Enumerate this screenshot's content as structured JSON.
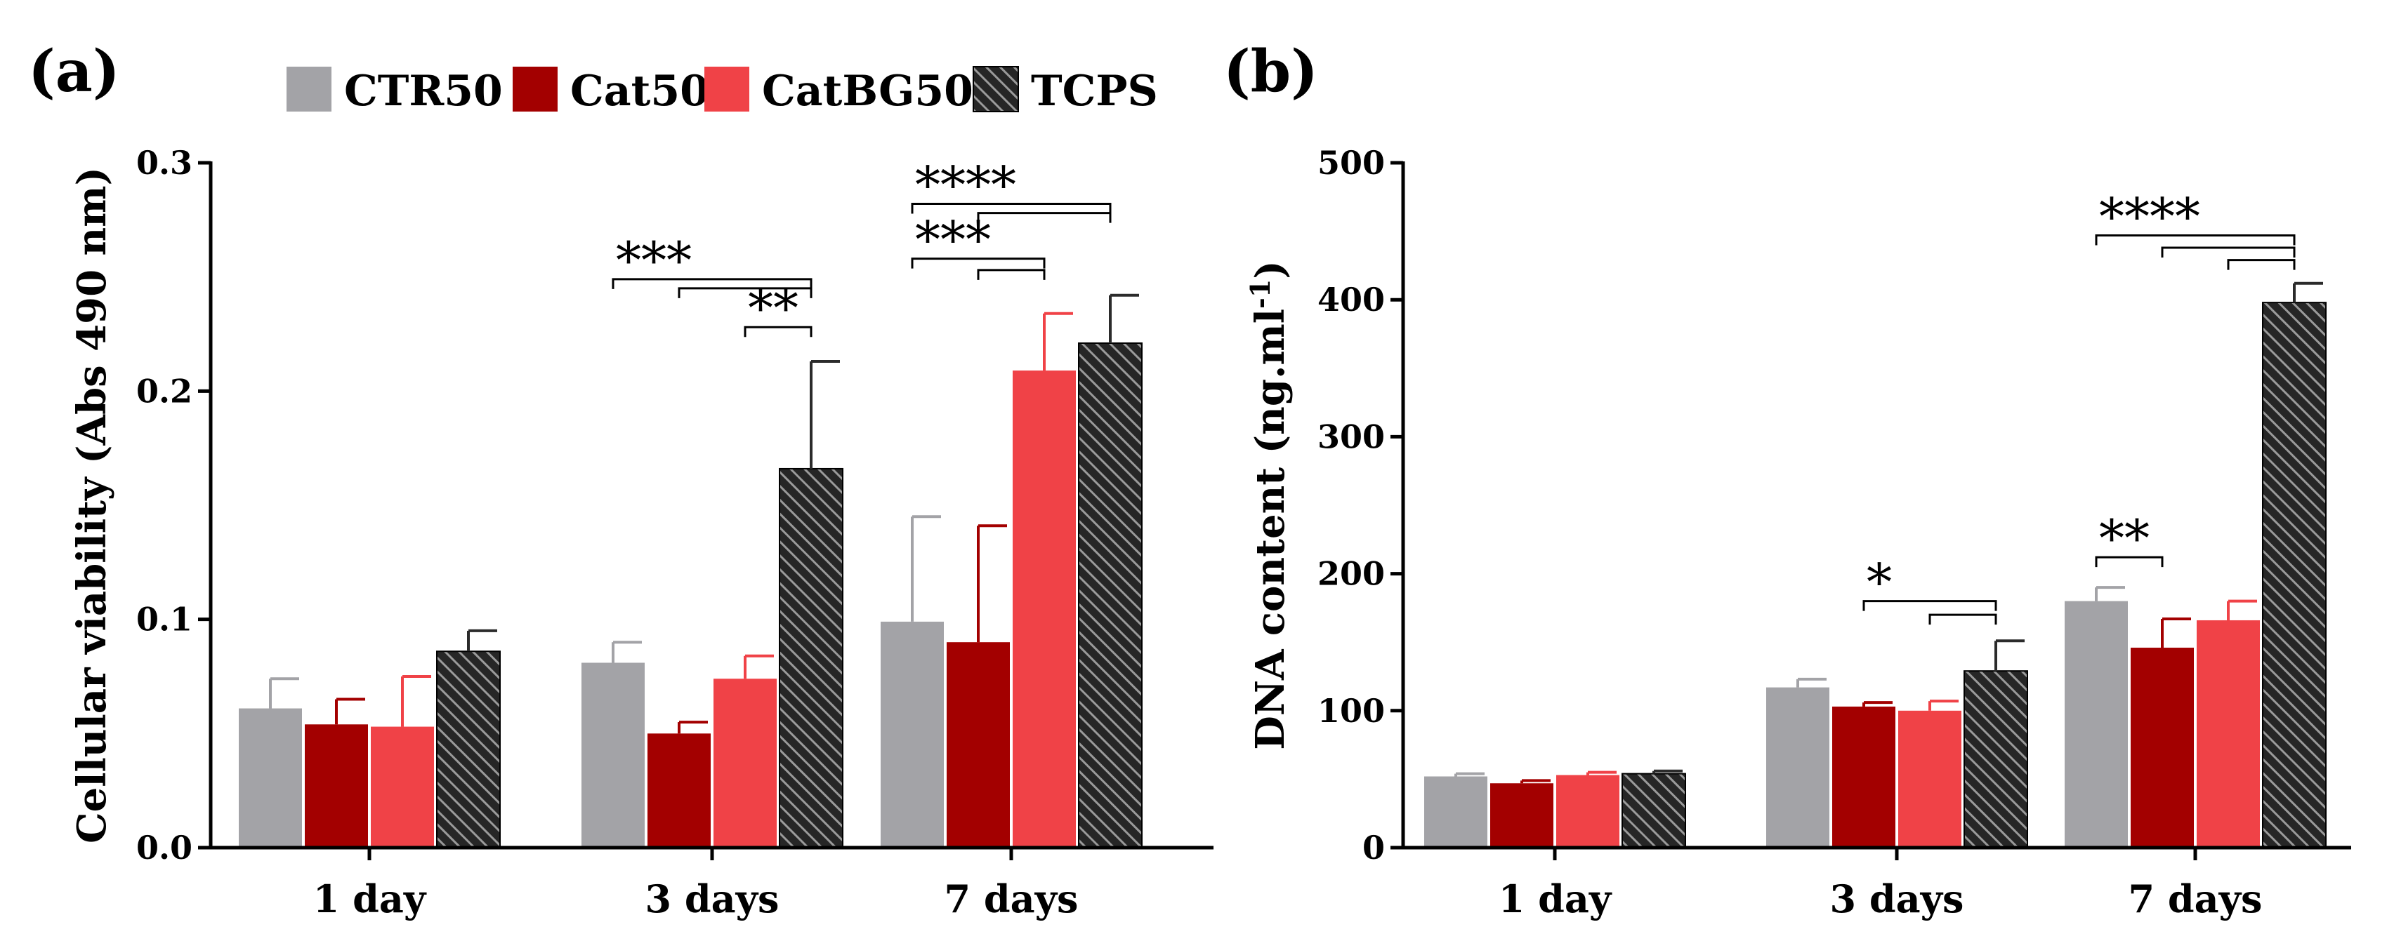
{
  "legend": [
    {
      "name": "CTR50",
      "color": "#a3a3a7"
    },
    {
      "name": "Cat50",
      "color": "#a30000"
    },
    {
      "name": "CatBG50",
      "color": "#f04247"
    },
    {
      "name": "TCPS",
      "color": "#2b2b2b",
      "pattern": "hatched"
    }
  ],
  "chart_data": [
    {
      "type": "bar",
      "panel": "(a)",
      "categories": [
        "1 day",
        "3 days",
        "7 days"
      ],
      "ylabel": "Cellular viability (Abs 490 nm)",
      "ylim": [
        0,
        0.3
      ],
      "yticks": [
        0.0,
        0.1,
        0.2,
        0.3
      ],
      "ytick_labels": [
        "0.0",
        "0.1",
        "0.2",
        "0.3"
      ],
      "series": [
        {
          "name": "CTR50",
          "values": [
            0.061,
            0.081,
            0.099
          ],
          "errors": [
            0.013,
            0.009,
            0.046
          ]
        },
        {
          "name": "Cat50",
          "values": [
            0.054,
            0.05,
            0.09
          ],
          "errors": [
            0.011,
            0.005,
            0.051
          ]
        },
        {
          "name": "CatBG50",
          "values": [
            0.053,
            0.074,
            0.209
          ],
          "errors": [
            0.022,
            0.01,
            0.025
          ]
        },
        {
          "name": "TCPS",
          "values": [
            0.086,
            0.166,
            0.221
          ],
          "errors": [
            0.009,
            0.047,
            0.021
          ]
        }
      ],
      "annotations": [
        {
          "label": "***",
          "category": 1,
          "from": 0,
          "to": 3,
          "level": 0.249,
          "extra_from": [
            1
          ],
          "extra_levels": [
            0.245
          ]
        },
        {
          "label": "**",
          "category": 1,
          "from": 2,
          "to": 3,
          "level": 0.228
        },
        {
          "label": "****",
          "category": 2,
          "from": 0,
          "to": 3,
          "level": 0.282,
          "extra_from": [
            1
          ],
          "extra_levels": [
            0.278
          ]
        },
        {
          "label": "***",
          "category": 2,
          "from": 0,
          "to": 2,
          "level": 0.258,
          "extra_from": [
            1
          ],
          "extra_levels": [
            0.253
          ]
        }
      ]
    },
    {
      "type": "bar",
      "panel": "(b)",
      "categories": [
        "1  day",
        "3 days",
        "7 days"
      ],
      "ylabel": "DNA content (ng.ml",
      "ylabel_sup": "-1",
      "ylabel_end": ")",
      "ylim": [
        0,
        500
      ],
      "yticks": [
        0,
        100,
        200,
        300,
        400,
        500
      ],
      "ytick_labels": [
        "0",
        "100",
        "200",
        "300",
        "400",
        "500"
      ],
      "series": [
        {
          "name": "CTR50",
          "values": [
            52,
            117,
            180
          ],
          "errors": [
            2,
            6,
            10
          ]
        },
        {
          "name": "Cat50",
          "values": [
            47,
            103,
            146
          ],
          "errors": [
            2,
            3,
            21
          ]
        },
        {
          "name": "CatBG50",
          "values": [
            53,
            100,
            166
          ],
          "errors": [
            2,
            7,
            14
          ]
        },
        {
          "name": "TCPS",
          "values": [
            54,
            129,
            398
          ],
          "errors": [
            2,
            22,
            14
          ]
        }
      ],
      "annotations": [
        {
          "label": "*",
          "category": 1,
          "from": 1,
          "to": 3,
          "level": 180,
          "extra_from": [
            2
          ],
          "extra_levels": [
            170
          ]
        },
        {
          "label": "****",
          "category": 2,
          "from": 0,
          "to": 3,
          "level": 447,
          "extra_from": [
            1,
            2
          ],
          "extra_levels": [
            438,
            429
          ]
        },
        {
          "label": "**",
          "category": 2,
          "from": 0,
          "to": 1,
          "level": 212
        }
      ]
    }
  ]
}
